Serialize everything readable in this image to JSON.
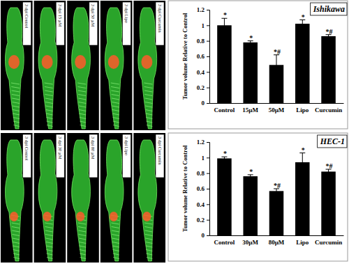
{
  "chart_data": [
    {
      "type": "bar",
      "title": "Ishikawa",
      "y_label": "Tumor volume Relative to Control",
      "categories": [
        "Control",
        "15µM",
        "50µM",
        "Lipo",
        "Curcumin"
      ],
      "values": [
        1.0,
        0.78,
        0.49,
        1.02,
        0.86
      ],
      "errors": [
        0.09,
        0.02,
        0.13,
        0.05,
        0.02
      ],
      "annotations": [
        "*",
        "*",
        "*#",
        "*",
        "*#"
      ],
      "color": "#000000",
      "ylim": [
        0,
        1.2
      ],
      "yticks": [
        0,
        0.2,
        0.4,
        0.6,
        0.8,
        1,
        1.2
      ],
      "grid": false
    },
    {
      "type": "bar",
      "title": "HEC-1",
      "y_label": "Tumor volume Relative to Control",
      "categories": [
        "Control",
        "30µM",
        "80µM",
        "Lipo",
        "Curcumin"
      ],
      "values": [
        0.99,
        0.76,
        0.57,
        0.94,
        0.82
      ],
      "errors": [
        0.02,
        0.02,
        0.03,
        0.12,
        0.03
      ],
      "annotations": [
        "*",
        "*",
        "*#",
        "*",
        "*#"
      ],
      "color": "#000000",
      "ylim": [
        0,
        1.2
      ],
      "yticks": [
        0,
        0.2,
        0.4,
        0.6,
        0.8,
        1,
        1.2
      ],
      "grid": false
    }
  ],
  "image_panels": [
    {
      "labels": [
        "3 dpi Control",
        "3 dpi 15 µM",
        "3 dpi 50 µM",
        "3 dpi Lipo",
        "3 dpi Curcumin"
      ]
    },
    {
      "labels": [
        "3 dpi Control",
        "3 dpi 30 µM",
        "3 dpi 80 µM",
        "3 dpi Lipo",
        "3 dpi Curcumin"
      ]
    }
  ]
}
